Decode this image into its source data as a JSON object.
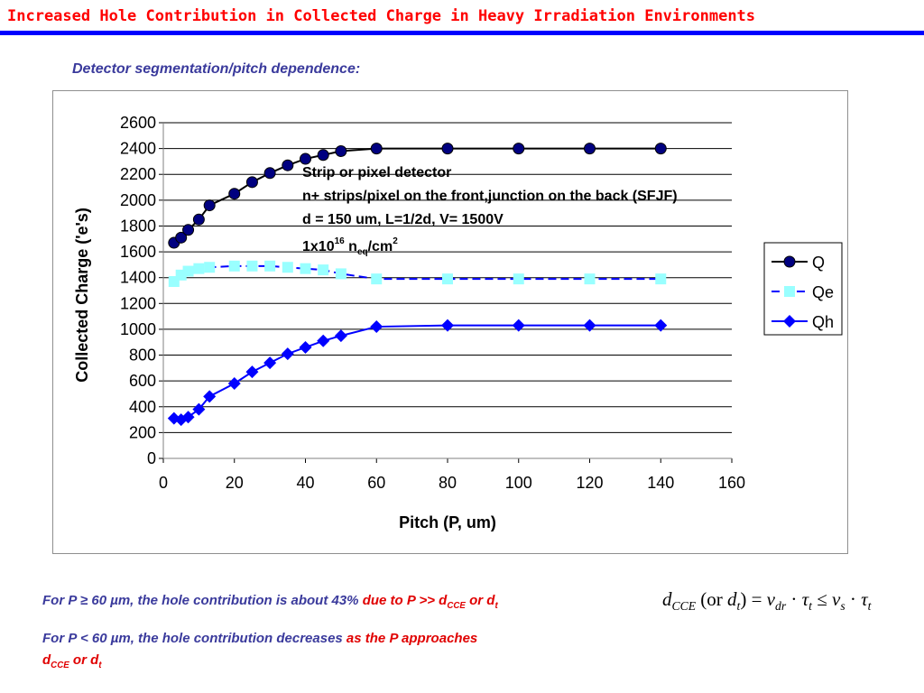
{
  "slide": {
    "title": "Increased Hole Contribution in Collected Charge in Heavy Irradiation Environments",
    "section": "Detector segmentation/pitch dependence:"
  },
  "chart_data": {
    "type": "line",
    "xlabel": "Pitch (P, um)",
    "ylabel": "Collected Charge ('e's)",
    "xlim": [
      0,
      160
    ],
    "ylim": [
      0,
      2600
    ],
    "xticks": [
      0,
      20,
      40,
      60,
      80,
      100,
      120,
      140,
      160
    ],
    "yticks": [
      0,
      200,
      400,
      600,
      800,
      1000,
      1200,
      1400,
      1600,
      1800,
      2000,
      2200,
      2400,
      2600
    ],
    "grid": "horizontal",
    "legend_position": "right",
    "series": [
      {
        "name": "Q",
        "marker": "circle",
        "line": "solid",
        "line_color": "#000000",
        "marker_color": "#000080",
        "x": [
          3,
          5,
          7,
          10,
          13,
          20,
          25,
          30,
          35,
          40,
          45,
          50,
          60,
          80,
          100,
          120,
          140
        ],
        "y": [
          1670,
          1710,
          1770,
          1850,
          1960,
          2050,
          2140,
          2210,
          2270,
          2320,
          2350,
          2380,
          2400,
          2400,
          2400,
          2400,
          2400
        ]
      },
      {
        "name": "Qe",
        "marker": "square",
        "line": "dashed",
        "line_color": "#0000ff",
        "marker_color": "#99ffff",
        "x": [
          3,
          5,
          7,
          10,
          13,
          20,
          25,
          30,
          35,
          40,
          45,
          50,
          60,
          80,
          100,
          120,
          140
        ],
        "y": [
          1370,
          1420,
          1450,
          1470,
          1480,
          1490,
          1490,
          1490,
          1480,
          1470,
          1460,
          1430,
          1390,
          1390,
          1390,
          1390,
          1390
        ]
      },
      {
        "name": "Qh",
        "marker": "diamond",
        "line": "solid",
        "line_color": "#0000ff",
        "marker_color": "#0000ff",
        "x": [
          3,
          5,
          7,
          10,
          13,
          20,
          25,
          30,
          35,
          40,
          45,
          50,
          60,
          80,
          100,
          120,
          140
        ],
        "y": [
          310,
          300,
          320,
          380,
          480,
          580,
          670,
          740,
          810,
          860,
          910,
          950,
          1020,
          1030,
          1030,
          1030,
          1030
        ]
      }
    ],
    "annotation": {
      "line1": "Strip or pixel detector",
      "line2": "n+ strips/pixel on the front,junction on the back (SFJF)",
      "line3": "d = 150 um, L=1/2d, V= 1500V",
      "line4_base": "1x10",
      "line4_exp": "16",
      "line4_n": " n",
      "line4_sub": "eq",
      "line4_unit": "/cm",
      "line4_unit_exp": "2"
    }
  },
  "notes": {
    "note1_blue": "For P ≥ 60 µm, the hole contribution is about 43% ",
    "note1_red": "due to P >> d",
    "note1_sub1": "CCE",
    "note1_or": " or d",
    "note1_sub2": "t",
    "note2_blue": "For P < 60 µm, the hole contribution decreases ",
    "note2_red": "as the P approaches",
    "note2_d": "d",
    "note2_sub1": "CCE",
    "note2_or": " or d",
    "note2_sub2": "t"
  },
  "formula": {
    "d": "d",
    "sub_cce": "CCE",
    "open": " (",
    "or_word": "or",
    "d2": " d",
    "sub_t": "t",
    "close": ") = ",
    "v": "v",
    "sub_dr": "dr",
    "dot1": " · ",
    "tau": "τ",
    "sub_t2": "t",
    "le": " ≤ ",
    "v2": "v",
    "sub_s": "s",
    "dot2": " · ",
    "tau2": "τ",
    "sub_t3": "t"
  }
}
